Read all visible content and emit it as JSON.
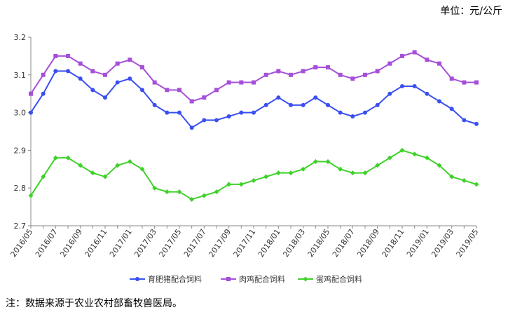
{
  "unit_label": "单位：元/公斤",
  "note": "注：数据来源于农业农村部畜牧兽医局。",
  "chart_data": {
    "type": "line",
    "title": "",
    "xlabel": "",
    "ylabel": "",
    "ylim": [
      2.7,
      3.2
    ],
    "yticks": [
      "2.7",
      "2.8",
      "2.9",
      "3.0",
      "3.1",
      "3.2"
    ],
    "grid": false,
    "legend_position": "bottom",
    "x": [
      "2016/05",
      "2016/06",
      "2016/07",
      "2016/08",
      "2016/09",
      "2016/10",
      "2016/11",
      "2016/12",
      "2017/01",
      "2017/02",
      "2017/03",
      "2017/04",
      "2017/05",
      "2017/06",
      "2017/07",
      "2017/08",
      "2017/09",
      "2017/10",
      "2017/11",
      "2017/12",
      "2018/01",
      "2018/02",
      "2018/03",
      "2018/04",
      "2018/05",
      "2018/06",
      "2018/07",
      "2018/08",
      "2018/09",
      "2018/10",
      "2018/11",
      "2018/12",
      "2019/01",
      "2019/02",
      "2019/03",
      "2019/04",
      "2019/05"
    ],
    "x_tick_labels": [
      "2016/05",
      "2016/07",
      "2016/09",
      "2016/11",
      "2017/01",
      "2017/03",
      "2017/05",
      "2017/07",
      "2017/09",
      "2017/11",
      "2018/01",
      "2018/03",
      "2018/05",
      "2018/07",
      "2018/09",
      "2018/11",
      "2019/01",
      "2019/03",
      "2019/05"
    ],
    "series": [
      {
        "name": "育肥猪配合饲料",
        "color": "#3a4ff0",
        "marker": "circle",
        "values": [
          3.0,
          3.05,
          3.11,
          3.11,
          3.09,
          3.06,
          3.04,
          3.08,
          3.09,
          3.06,
          3.02,
          3.0,
          3.0,
          2.96,
          2.98,
          2.98,
          2.99,
          3.0,
          3.0,
          3.02,
          3.04,
          3.02,
          3.02,
          3.04,
          3.02,
          3.0,
          2.99,
          3.0,
          3.02,
          3.05,
          3.07,
          3.07,
          3.05,
          3.03,
          3.01,
          2.98,
          2.97
        ]
      },
      {
        "name": "肉鸡配合饲料",
        "color": "#a64fd9",
        "marker": "square",
        "values": [
          3.05,
          3.1,
          3.15,
          3.15,
          3.13,
          3.11,
          3.1,
          3.13,
          3.14,
          3.12,
          3.08,
          3.06,
          3.06,
          3.03,
          3.04,
          3.06,
          3.08,
          3.08,
          3.08,
          3.1,
          3.11,
          3.1,
          3.11,
          3.12,
          3.12,
          3.1,
          3.09,
          3.1,
          3.11,
          3.13,
          3.15,
          3.16,
          3.14,
          3.13,
          3.09,
          3.08,
          3.08
        ]
      },
      {
        "name": "蛋鸡配合饲料",
        "color": "#3fd12a",
        "marker": "diamond",
        "values": [
          2.78,
          2.83,
          2.88,
          2.88,
          2.86,
          2.84,
          2.83,
          2.86,
          2.87,
          2.85,
          2.8,
          2.79,
          2.79,
          2.77,
          2.78,
          2.79,
          2.81,
          2.81,
          2.82,
          2.83,
          2.84,
          2.84,
          2.85,
          2.87,
          2.87,
          2.85,
          2.84,
          2.84,
          2.86,
          2.88,
          2.9,
          2.89,
          2.88,
          2.86,
          2.83,
          2.82,
          2.81
        ]
      }
    ]
  }
}
